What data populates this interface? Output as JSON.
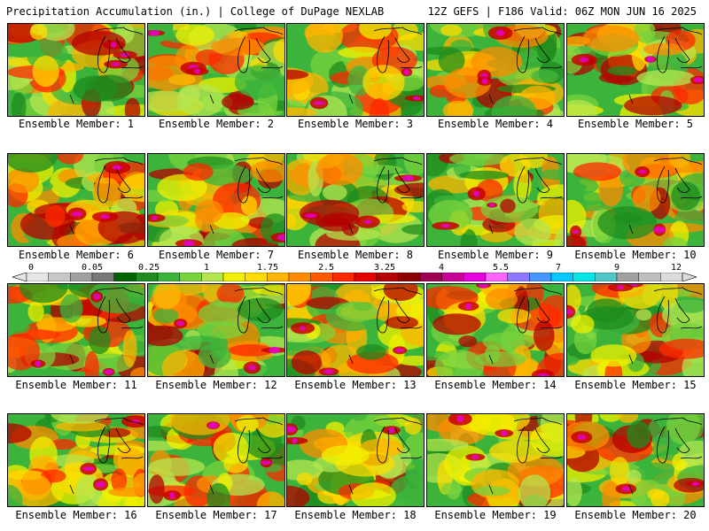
{
  "header": {
    "title": "Precipitation Accumulation (in.) | College of DuPage NEXLAB",
    "run_info": "12Z GEFS | F186 Valid: 06Z MON JUN 16 2025"
  },
  "caption_prefix": "Ensemble Member: ",
  "members": [
    {
      "label": "Ensemble Member: 1"
    },
    {
      "label": "Ensemble Member: 2"
    },
    {
      "label": "Ensemble Member: 3"
    },
    {
      "label": "Ensemble Member: 4"
    },
    {
      "label": "Ensemble Member: 5"
    },
    {
      "label": "Ensemble Member: 6"
    },
    {
      "label": "Ensemble Member: 7"
    },
    {
      "label": "Ensemble Member: 8"
    },
    {
      "label": "Ensemble Member: 9"
    },
    {
      "label": "Ensemble Member: 10"
    },
    {
      "label": "Ensemble Member: 11"
    },
    {
      "label": "Ensemble Member: 12"
    },
    {
      "label": "Ensemble Member: 13"
    },
    {
      "label": "Ensemble Member: 14"
    },
    {
      "label": "Ensemble Member: 15"
    },
    {
      "label": "Ensemble Member: 16"
    },
    {
      "label": "Ensemble Member: 17"
    },
    {
      "label": "Ensemble Member: 18"
    },
    {
      "label": "Ensemble Member: 19"
    },
    {
      "label": "Ensemble Member: 20"
    }
  ],
  "colorbar": {
    "tick_labels": [
      "0",
      "0.05",
      "0.25",
      "1",
      "1.75",
      "2.5",
      "3.25",
      "4",
      "5.5",
      "7",
      "9",
      "12"
    ],
    "colors": [
      "#e6e6e6",
      "#c8c8c8",
      "#a0a0a0",
      "#787878",
      "#006400",
      "#1e8c1e",
      "#3cb43c",
      "#78d23c",
      "#b4e650",
      "#f0f000",
      "#ffdc00",
      "#ffb400",
      "#ff8c00",
      "#ff5a00",
      "#ff2800",
      "#e60000",
      "#b40000",
      "#8c0000",
      "#a00050",
      "#c80096",
      "#e600dc",
      "#ff64ff",
      "#8c78ff",
      "#4696ff",
      "#00c8ff",
      "#00e6e6",
      "#50c8c8",
      "#a0a0a0",
      "#bebebe",
      "#dcdcdc"
    ]
  }
}
